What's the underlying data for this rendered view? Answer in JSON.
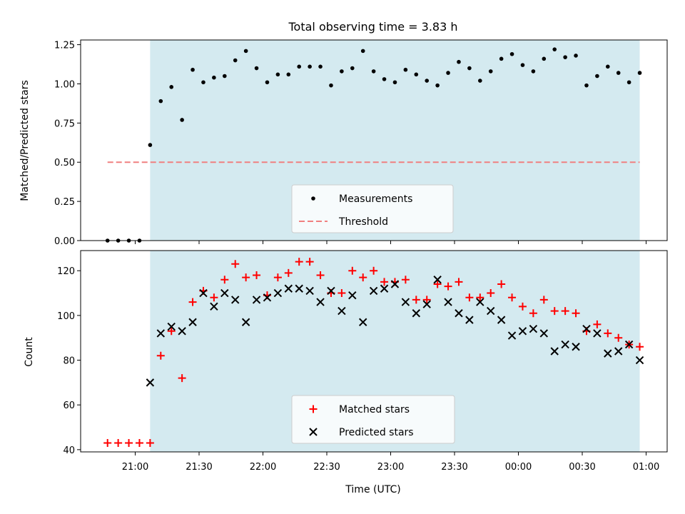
{
  "chart_data": [
    {
      "type": "scatter",
      "title": "Total observing time = 3.83 h",
      "ylabel": "Matched/Predicted stars",
      "ylim": [
        0,
        1.28
      ],
      "yticks": [
        "0.00",
        "0.25",
        "0.50",
        "0.75",
        "1.00",
        "1.25"
      ],
      "ytick_values": [
        0,
        0.25,
        0.5,
        0.75,
        1.0,
        1.25
      ],
      "shaded_interval": [
        "21:07",
        "00:57"
      ],
      "shade_color": "#d4eaf0",
      "series": [
        {
          "name": "Measurements",
          "marker": "dot",
          "color": "#000000",
          "x": [
            "20:47",
            "20:52",
            "20:57",
            "21:02",
            "21:07",
            "21:12",
            "21:17",
            "21:22",
            "21:27",
            "21:32",
            "21:37",
            "21:42",
            "21:47",
            "21:52",
            "21:57",
            "22:02",
            "22:07",
            "22:12",
            "22:17",
            "22:22",
            "22:27",
            "22:32",
            "22:37",
            "22:42",
            "22:47",
            "22:52",
            "22:57",
            "23:02",
            "23:07",
            "23:12",
            "23:17",
            "23:22",
            "23:27",
            "23:32",
            "23:37",
            "23:42",
            "23:47",
            "23:52",
            "23:57",
            "00:02",
            "00:07",
            "00:12",
            "00:17",
            "00:22",
            "00:27",
            "00:32",
            "00:37",
            "00:42",
            "00:47",
            "00:52",
            "00:57"
          ],
          "values": [
            0,
            0,
            0,
            0,
            0.61,
            0.89,
            0.98,
            0.77,
            1.09,
            1.01,
            1.04,
            1.05,
            1.15,
            1.21,
            1.1,
            1.01,
            1.06,
            1.06,
            1.11,
            1.11,
            1.11,
            0.99,
            1.08,
            1.1,
            1.21,
            1.08,
            1.03,
            1.01,
            1.09,
            1.06,
            1.02,
            0.99,
            1.07,
            1.14,
            1.1,
            1.02,
            1.08,
            1.16,
            1.19,
            1.12,
            1.08,
            1.16,
            1.22,
            1.17,
            1.18,
            0.99,
            1.05,
            1.11,
            1.07,
            1.01,
            1.07
          ]
        },
        {
          "name": "Threshold",
          "marker": "dashed",
          "color": "#f08080",
          "x": [
            "20:47",
            "00:57"
          ],
          "values": [
            0.5,
            0.5
          ]
        }
      ],
      "legend": "lower-center"
    },
    {
      "type": "scatter",
      "ylabel": "Count",
      "xlabel": "Time (UTC)",
      "ylim": [
        39,
        129
      ],
      "yticks": [
        "40",
        "60",
        "80",
        "100",
        "120"
      ],
      "ytick_values": [
        40,
        60,
        80,
        100,
        120
      ],
      "xticks": [
        "21:00",
        "21:30",
        "22:00",
        "22:30",
        "23:00",
        "23:30",
        "00:00",
        "00:30",
        "01:00"
      ],
      "shaded_interval": [
        "21:07",
        "00:57"
      ],
      "shade_color": "#d4eaf0",
      "series": [
        {
          "name": "Matched stars",
          "marker": "plus",
          "color": "#ff0000",
          "x": [
            "20:47",
            "20:52",
            "20:57",
            "21:02",
            "21:07",
            "21:12",
            "21:17",
            "21:22",
            "21:27",
            "21:32",
            "21:37",
            "21:42",
            "21:47",
            "21:52",
            "21:57",
            "22:02",
            "22:07",
            "22:12",
            "22:17",
            "22:22",
            "22:27",
            "22:32",
            "22:37",
            "22:42",
            "22:47",
            "22:52",
            "22:57",
            "23:02",
            "23:07",
            "23:12",
            "23:17",
            "23:22",
            "23:27",
            "23:32",
            "23:37",
            "23:42",
            "23:47",
            "23:52",
            "23:57",
            "00:02",
            "00:07",
            "00:12",
            "00:17",
            "00:22",
            "00:27",
            "00:32",
            "00:37",
            "00:42",
            "00:47",
            "00:52",
            "00:57"
          ],
          "values": [
            43,
            43,
            43,
            43,
            43,
            82,
            93,
            72,
            106,
            111,
            108,
            116,
            123,
            117,
            118,
            109,
            117,
            119,
            124,
            124,
            118,
            110,
            110,
            120,
            117,
            120,
            115,
            115,
            116,
            107,
            107,
            114,
            113,
            115,
            108,
            108,
            110,
            114,
            108,
            104,
            101,
            107,
            102,
            102,
            101,
            93,
            96,
            92,
            90,
            87,
            86
          ]
        },
        {
          "name": "Predicted stars",
          "marker": "x",
          "color": "#000000",
          "x": [
            "21:07",
            "21:12",
            "21:17",
            "21:22",
            "21:27",
            "21:32",
            "21:37",
            "21:42",
            "21:47",
            "21:52",
            "21:57",
            "22:02",
            "22:07",
            "22:12",
            "22:17",
            "22:22",
            "22:27",
            "22:32",
            "22:37",
            "22:42",
            "22:47",
            "22:52",
            "22:57",
            "23:02",
            "23:07",
            "23:12",
            "23:17",
            "23:22",
            "23:27",
            "23:32",
            "23:37",
            "23:42",
            "23:47",
            "23:52",
            "23:57",
            "00:02",
            "00:07",
            "00:12",
            "00:17",
            "00:22",
            "00:27",
            "00:32",
            "00:37",
            "00:42",
            "00:47",
            "00:52",
            "00:57"
          ],
          "values": [
            70,
            92,
            95,
            93,
            97,
            110,
            104,
            110,
            107,
            97,
            107,
            108,
            110,
            112,
            112,
            111,
            106,
            111,
            102,
            109,
            97,
            111,
            112,
            114,
            106,
            101,
            105,
            116,
            106,
            101,
            98,
            106,
            102,
            98,
            91,
            93,
            94,
            92,
            84,
            87,
            86,
            94,
            92,
            83,
            84,
            87,
            80
          ]
        }
      ],
      "legend": "lower-center"
    }
  ]
}
